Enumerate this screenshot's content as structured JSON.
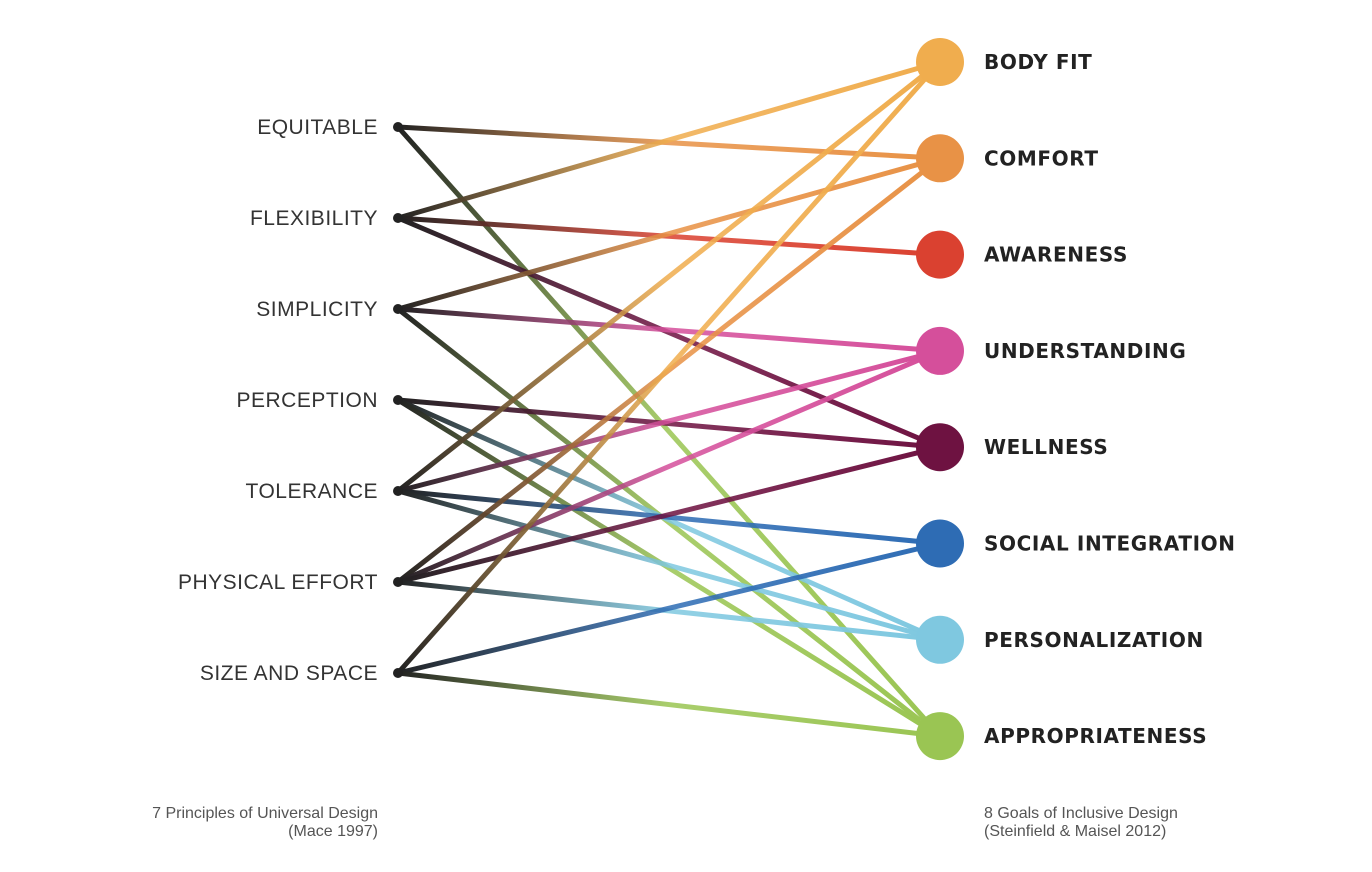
{
  "principles": {
    "items": [
      "EQUITABLE",
      "FLEXIBILITY",
      "SIMPLICITY",
      "PERCEPTION",
      "TOLERANCE",
      "PHYSICAL EFFORT",
      "SIZE AND SPACE"
    ],
    "caption_line1": "7 Principles of Universal Design",
    "caption_line2": "(Mace 1997)",
    "node_color": "#222222"
  },
  "goals": {
    "items": [
      {
        "label": "BODY FIT",
        "color": "#F0AD4E"
      },
      {
        "label": "COMFORT",
        "color": "#E89246"
      },
      {
        "label": "AWARENESS",
        "color": "#DA4130"
      },
      {
        "label": "UNDERSTANDING",
        "color": "#D54F9B"
      },
      {
        "label": "WELLNESS",
        "color": "#6E1241"
      },
      {
        "label": "SOCIAL INTEGRATION",
        "color": "#2E6CB4"
      },
      {
        "label": "PERSONALIZATION",
        "color": "#7FC8E0"
      },
      {
        "label": "APPROPRIATENESS",
        "color": "#9AC553"
      }
    ],
    "caption_line1": "8 Goals of Inclusive Design",
    "caption_line2": "(Steinfield & Maisel 2012)"
  },
  "connections": [
    [
      "EQUITABLE",
      "COMFORT"
    ],
    [
      "EQUITABLE",
      "APPROPRIATENESS"
    ],
    [
      "FLEXIBILITY",
      "BODY FIT"
    ],
    [
      "FLEXIBILITY",
      "AWARENESS"
    ],
    [
      "FLEXIBILITY",
      "WELLNESS"
    ],
    [
      "SIMPLICITY",
      "COMFORT"
    ],
    [
      "SIMPLICITY",
      "UNDERSTANDING"
    ],
    [
      "SIMPLICITY",
      "APPROPRIATENESS"
    ],
    [
      "PERCEPTION",
      "WELLNESS"
    ],
    [
      "PERCEPTION",
      "PERSONALIZATION"
    ],
    [
      "PERCEPTION",
      "APPROPRIATENESS"
    ],
    [
      "TOLERANCE",
      "BODY FIT"
    ],
    [
      "TOLERANCE",
      "UNDERSTANDING"
    ],
    [
      "TOLERANCE",
      "SOCIAL INTEGRATION"
    ],
    [
      "TOLERANCE",
      "PERSONALIZATION"
    ],
    [
      "PHYSICAL EFFORT",
      "COMFORT"
    ],
    [
      "PHYSICAL EFFORT",
      "UNDERSTANDING"
    ],
    [
      "PHYSICAL EFFORT",
      "WELLNESS"
    ],
    [
      "PHYSICAL EFFORT",
      "PERSONALIZATION"
    ],
    [
      "SIZE AND SPACE",
      "BODY FIT"
    ],
    [
      "SIZE AND SPACE",
      "SOCIAL INTEGRATION"
    ],
    [
      "SIZE AND SPACE",
      "APPROPRIATENESS"
    ]
  ]
}
